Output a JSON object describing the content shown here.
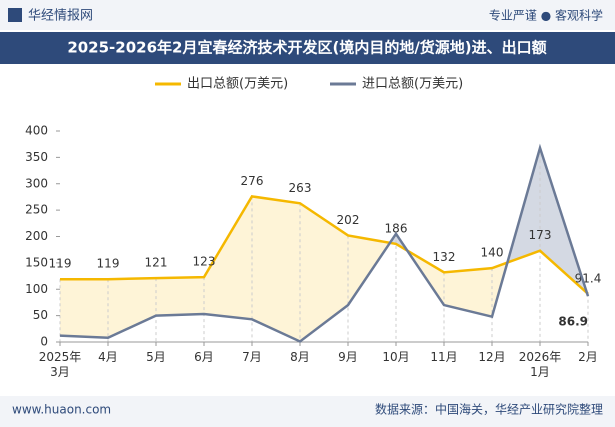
{
  "header": {
    "brand": "华经情报网",
    "slogan": "专业严谨 ● 客观科学"
  },
  "chart_data": {
    "type": "line",
    "title": "2025-2026年2月宜春经济技术开发区(境内目的地/货源地)进、出口额",
    "categories": [
      "2025年3月",
      "4月",
      "5月",
      "6月",
      "7月",
      "8月",
      "9月",
      "10月",
      "11月",
      "12月",
      "2026年1月",
      "2月"
    ],
    "series": [
      {
        "name": "出口总额(万美元)",
        "color": "#f5b800",
        "values": [
          119,
          119,
          121,
          123,
          276,
          263,
          202,
          186,
          132,
          140,
          173,
          91.4
        ]
      },
      {
        "name": "进口总额(万美元)",
        "color": "#6b7a96",
        "values": [
          12,
          8,
          50,
          53,
          43,
          1,
          70,
          205,
          70,
          48,
          368,
          86.9
        ],
        "value_labels": [
          null,
          null,
          null,
          null,
          null,
          null,
          null,
          null,
          null,
          null,
          null,
          "86.9"
        ]
      }
    ],
    "ylim": [
      0,
      400
    ],
    "yticks": [
      0,
      50,
      100,
      150,
      200,
      250,
      300,
      350,
      400
    ],
    "grid": false
  },
  "footer": {
    "site": "www.huaon.com",
    "source": "数据来源：中国海关，华经产业研究院整理"
  }
}
